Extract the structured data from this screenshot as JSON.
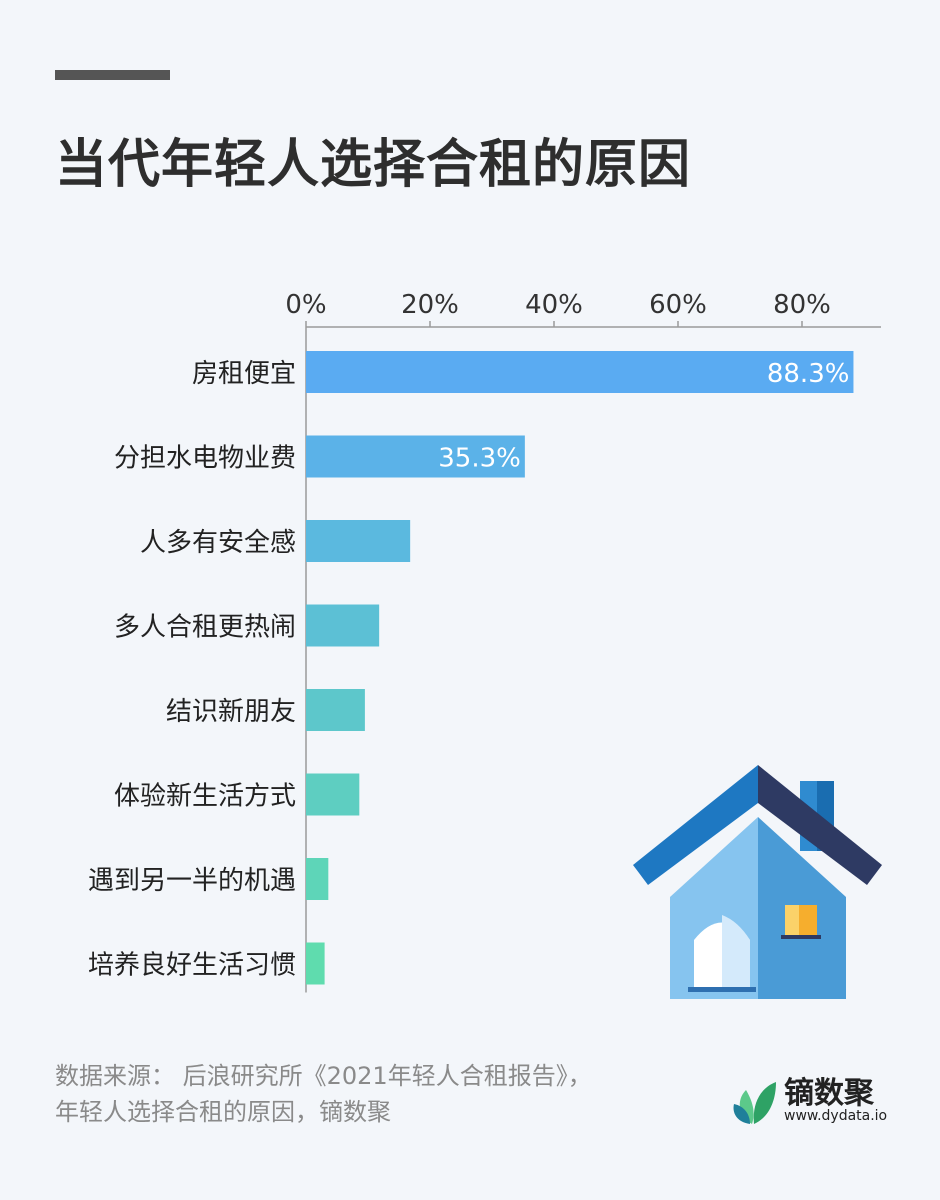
{
  "title": "当代年轻人选择合租的原因",
  "source": "数据来源： 后浪研究所《2021年轻人合租报告》，年轻人选择合租的原因，镝数聚",
  "brand": {
    "name": "镝数聚",
    "url": "www.dydata.io"
  },
  "illustration": "house-icon",
  "colors": {
    "title": "#2e2e2e",
    "bar_top": "#5aabf2",
    "bar_bottom": "#5fdcae",
    "axis": "#9a9a9a",
    "source_text": "#8a8a8a"
  },
  "chart_data": {
    "type": "bar",
    "orientation": "horizontal",
    "categories": [
      "房租便宜",
      "分担水电物业费",
      "人多有安全感",
      "多人合租更热闹",
      "结识新朋友",
      "体验新生活方式",
      "遇到另一半的机遇",
      "培养良好生活习惯"
    ],
    "values": [
      88.3,
      35.3,
      16.8,
      11.8,
      9.5,
      8.6,
      3.6,
      3.0
    ],
    "data_labels": [
      "88.3%",
      "35.3%",
      "",
      "",
      "",
      "",
      "",
      ""
    ],
    "x_ticks": [
      0,
      20,
      40,
      60,
      80
    ],
    "x_tick_labels": [
      "0%",
      "20%",
      "40%",
      "60%",
      "80%"
    ],
    "xlim": [
      0,
      92
    ],
    "axis_position": "top",
    "grid": false,
    "legend": false,
    "title": "",
    "xlabel": "",
    "ylabel": ""
  }
}
